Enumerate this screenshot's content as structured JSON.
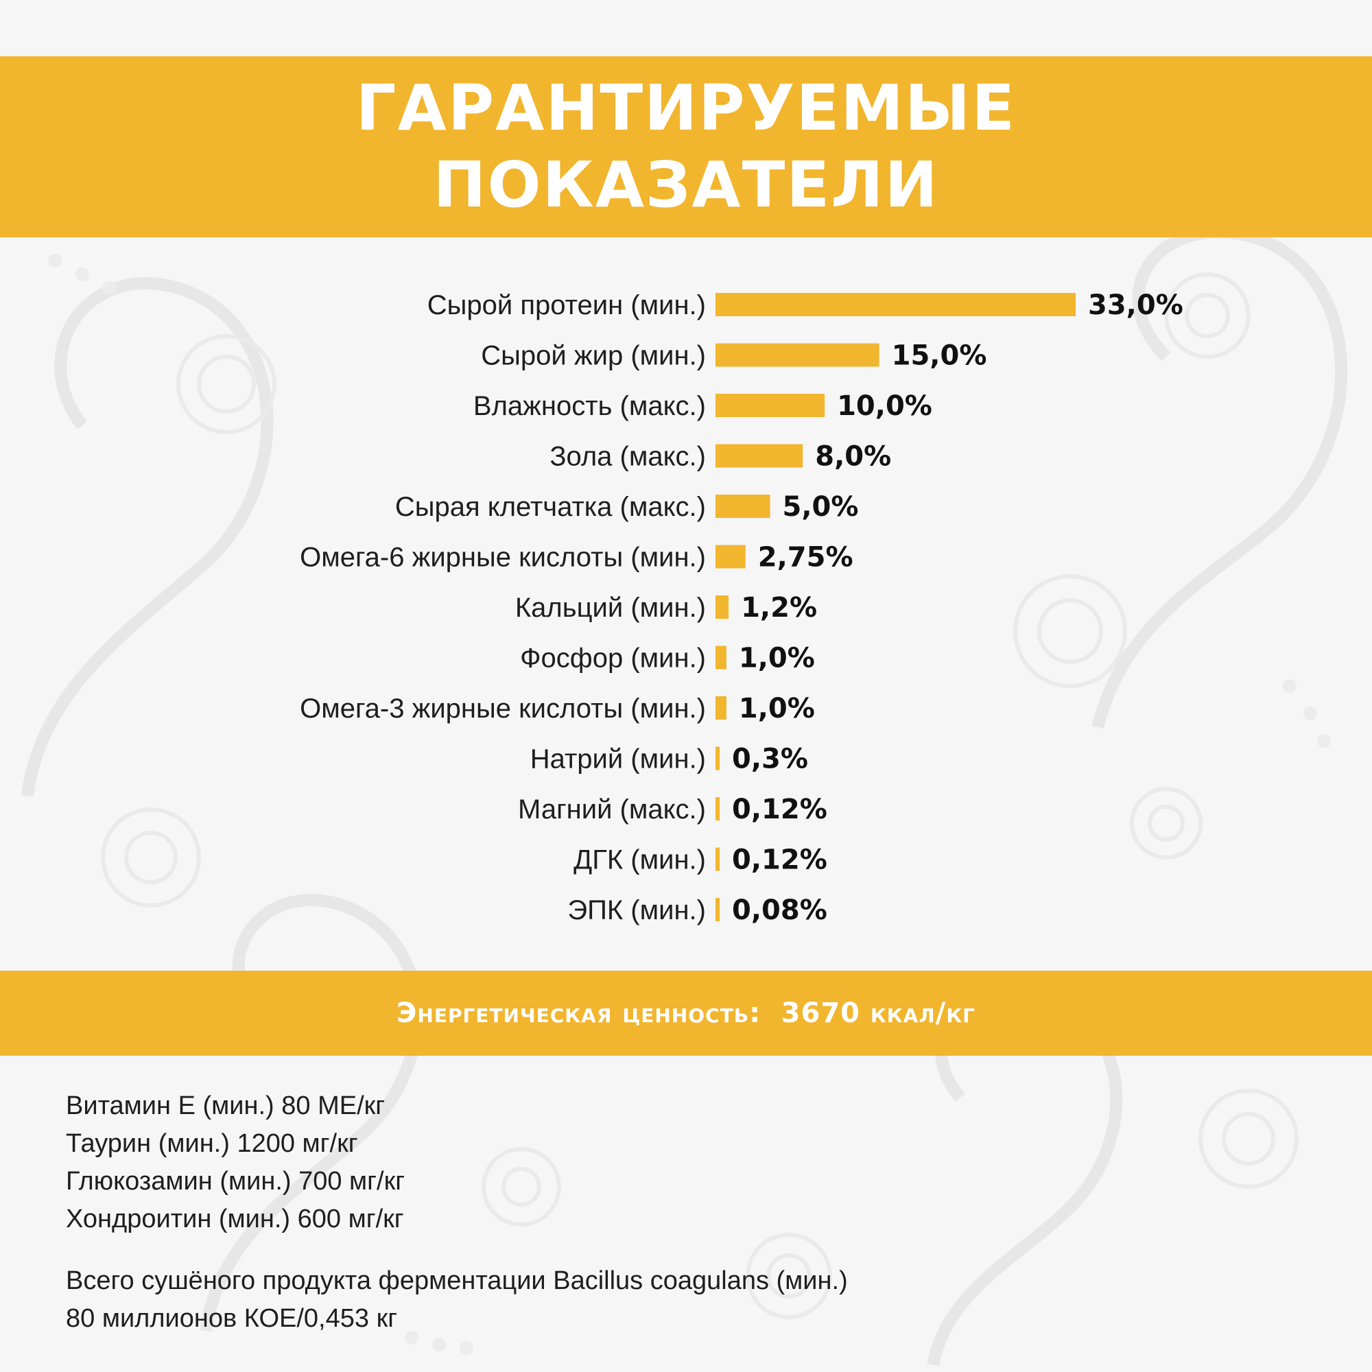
{
  "colors": {
    "accent": "#f1b52e",
    "text": "#1e1e1e",
    "banner_text": "#ffffff"
  },
  "header": {
    "title_line1": "ГАРАНТИРУЕМЫЕ",
    "title_line2": "ПОКАЗАТЕЛИ"
  },
  "chart_data": {
    "type": "bar",
    "orientation": "horizontal",
    "unit": "%",
    "grid": false,
    "categories": [
      "Сырой протеин (мин.)",
      "Сырой жир (мин.)",
      "Влажность (макс.)",
      "Зола (макс.)",
      "Сырая клетчатка (макс.)",
      "Омега-6 жирные кислоты (мин.)",
      "Кальций (мин.)",
      "Фосфор (мин.)",
      "Омега-3 жирные кислоты (мин.)",
      "Натрий (мин.)",
      "Магний (макс.)",
      "ДГК (мин.)",
      "ЭПК (мин.)"
    ],
    "values": [
      33.0,
      15.0,
      10.0,
      8.0,
      5.0,
      2.75,
      1.2,
      1.0,
      1.0,
      0.3,
      0.12,
      0.12,
      0.08
    ],
    "value_labels": [
      "33,0%",
      "15,0%",
      "10,0%",
      "8,0%",
      "5,0%",
      "2,75%",
      "1,2%",
      "1,0%",
      "1,0%",
      "0,3%",
      "0,12%",
      "0,12%",
      "0,08%"
    ]
  },
  "energy": {
    "label": "Энергетическая ценность:",
    "value": "3670 ккал/кг"
  },
  "supplements": [
    "Витамин Е (мин.) 80 МЕ/кг",
    "Таурин (мин.) 1200 мг/кг",
    "Глюкозамин (мин.) 700 мг/кг",
    "Хондроитин (мин.) 600 мг/кг"
  ],
  "probiotic": {
    "line1": "Всего сушёного продукта ферментации Bacillus coagulans (мин.)",
    "line2": "80 миллионов КОЕ/0,453 кг"
  }
}
